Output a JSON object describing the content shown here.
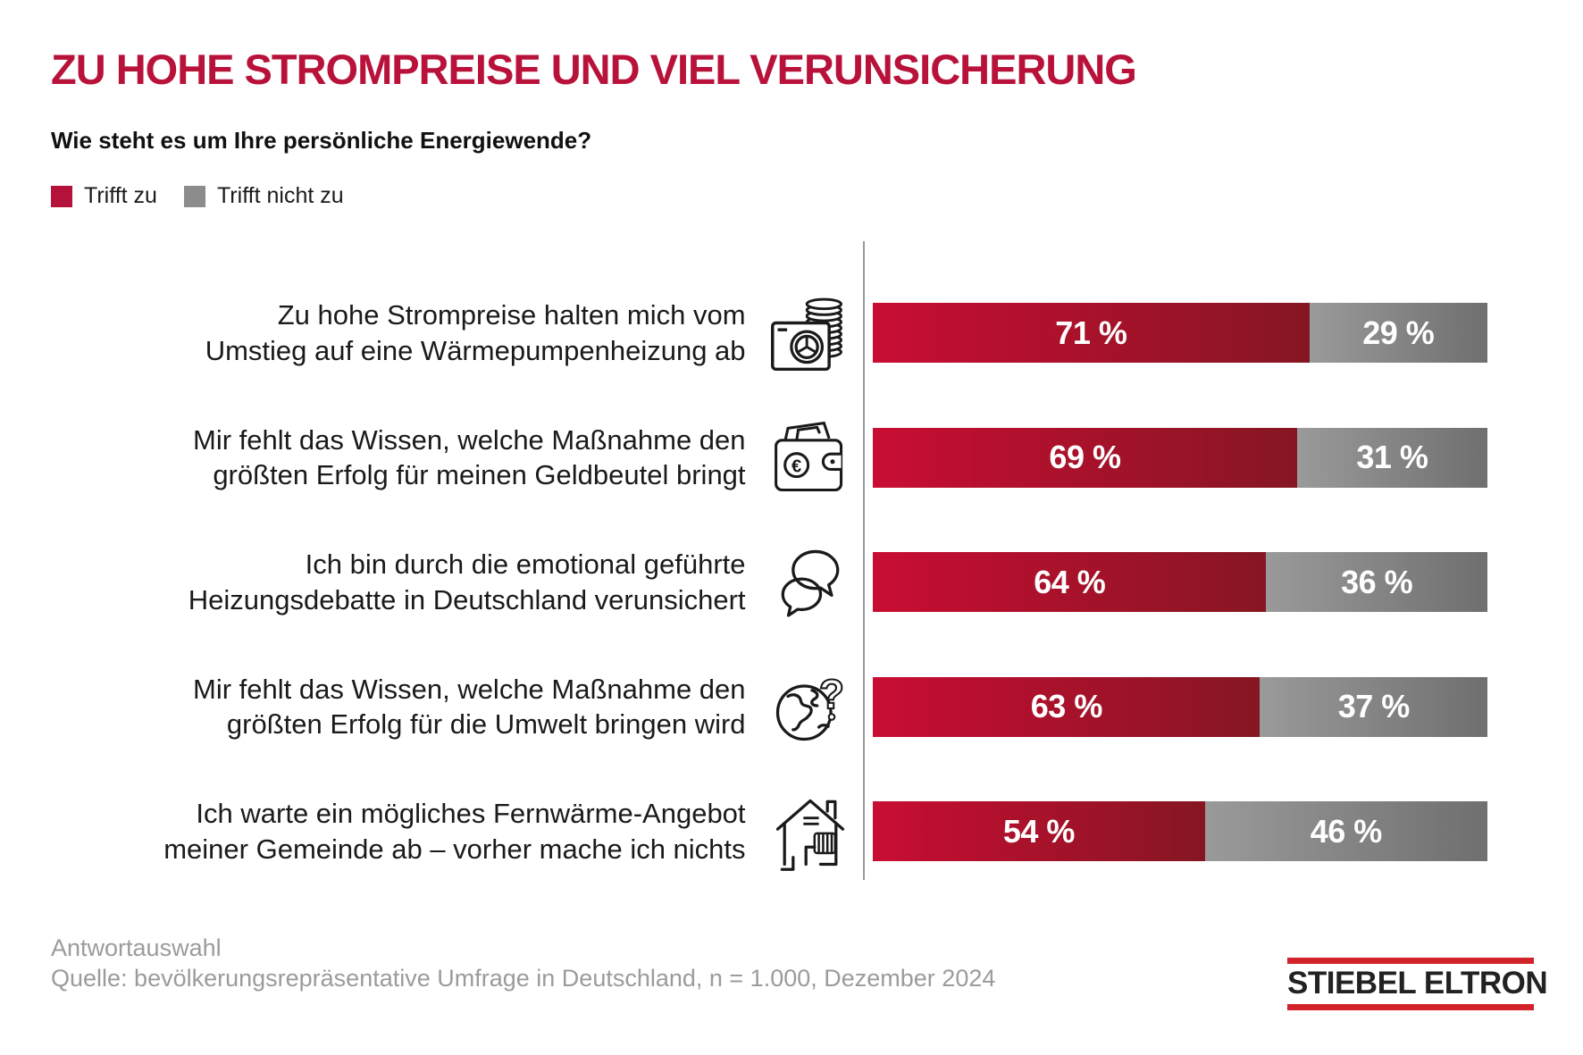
{
  "header": {
    "title": "ZU HOHE STROMPREISE UND VIEL VERUNSICHERUNG",
    "subtitle": "Wie steht es um Ihre persönliche Energiewende?"
  },
  "legend": [
    {
      "label": "Trifft zu",
      "color": "#B5123B"
    },
    {
      "label": "Trifft nicht zu",
      "color": "#8C8C8C"
    }
  ],
  "chart_data": {
    "type": "bar",
    "orientation": "horizontal_stacked",
    "unit": "percent",
    "xlim": [
      0,
      100
    ],
    "legend_position": "top-left",
    "series": [
      {
        "name": "Trifft zu",
        "values": [
          71,
          69,
          64,
          63,
          54
        ],
        "color_start": "#C90D33",
        "color_end": "#861622"
      },
      {
        "name": "Trifft nicht zu",
        "values": [
          29,
          31,
          36,
          37,
          46
        ],
        "color_start": "#9A9A9A",
        "color_end": "#6F6F6F"
      }
    ],
    "categories": [
      "Zu hohe Strompreise halten mich vom Umstieg auf eine Wärmepumpenheizung ab",
      "Mir fehlt das Wissen, welche Maßnahme den größten Erfolg für meinen Geldbeutel bringt",
      "Ich bin durch die emotional geführte Heizungsdebatte in Deutschland verunsichert",
      "Mir fehlt das Wissen, welche Maßnahme den größten Erfolg für die Umwelt bringen wird",
      "Ich warte ein mögliches Fernwärme-Angebot meiner Gemeinde ab – vorher mache ich nichts"
    ],
    "rows": [
      {
        "label_lines": [
          "Zu hohe Strompreise halten mich vom",
          "Umstieg auf eine Wärmepumpenheizung ab"
        ],
        "icon": "heat-pump-coins-icon",
        "trifft_zu": 71,
        "trifft_nicht_zu": 29,
        "trifft_zu_label": "71 %",
        "trifft_nicht_zu_label": "29 %"
      },
      {
        "label_lines": [
          "Mir fehlt das Wissen, welche Maßnahme den",
          "größten Erfolg für meinen Geldbeutel bringt"
        ],
        "icon": "wallet-euro-icon",
        "trifft_zu": 69,
        "trifft_nicht_zu": 31,
        "trifft_zu_label": "69 %",
        "trifft_nicht_zu_label": "31 %"
      },
      {
        "label_lines": [
          "Ich bin durch die emotional geführte",
          "Heizungsdebatte in Deutschland verunsichert"
        ],
        "icon": "speech-bubbles-icon",
        "trifft_zu": 64,
        "trifft_nicht_zu": 36,
        "trifft_zu_label": "64 %",
        "trifft_nicht_zu_label": "36 %"
      },
      {
        "label_lines": [
          "Mir fehlt das Wissen, welche Maßnahme den",
          "größten Erfolg für die Umwelt bringen wird"
        ],
        "icon": "globe-question-icon",
        "trifft_zu": 63,
        "trifft_nicht_zu": 37,
        "trifft_zu_label": "63 %",
        "trifft_nicht_zu_label": "37 %"
      },
      {
        "label_lines": [
          "Ich warte ein mögliches Fernwärme-Angebot",
          "meiner Gemeinde ab – vorher mache ich nichts"
        ],
        "icon": "house-radiator-icon",
        "trifft_zu": 54,
        "trifft_nicht_zu": 46,
        "trifft_zu_label": "54 %",
        "trifft_nicht_zu_label": "46 %"
      }
    ]
  },
  "colors": {
    "title": "#B8123A",
    "bar_red_start": "#C90D33",
    "bar_red_end": "#861622",
    "bar_gray_start": "#9A9A9A",
    "bar_gray_end": "#6F6F6F",
    "axis_line": "#9A9A9A",
    "logo_red": "#D2232A"
  },
  "footer": {
    "note": "Antwortauswahl",
    "source": "Quelle: bevölkerungsrepräsentative Umfrage in Deutschland, n = 1.000, Dezember 2024"
  },
  "logo": {
    "text": "STIEBEL ELTRON"
  }
}
